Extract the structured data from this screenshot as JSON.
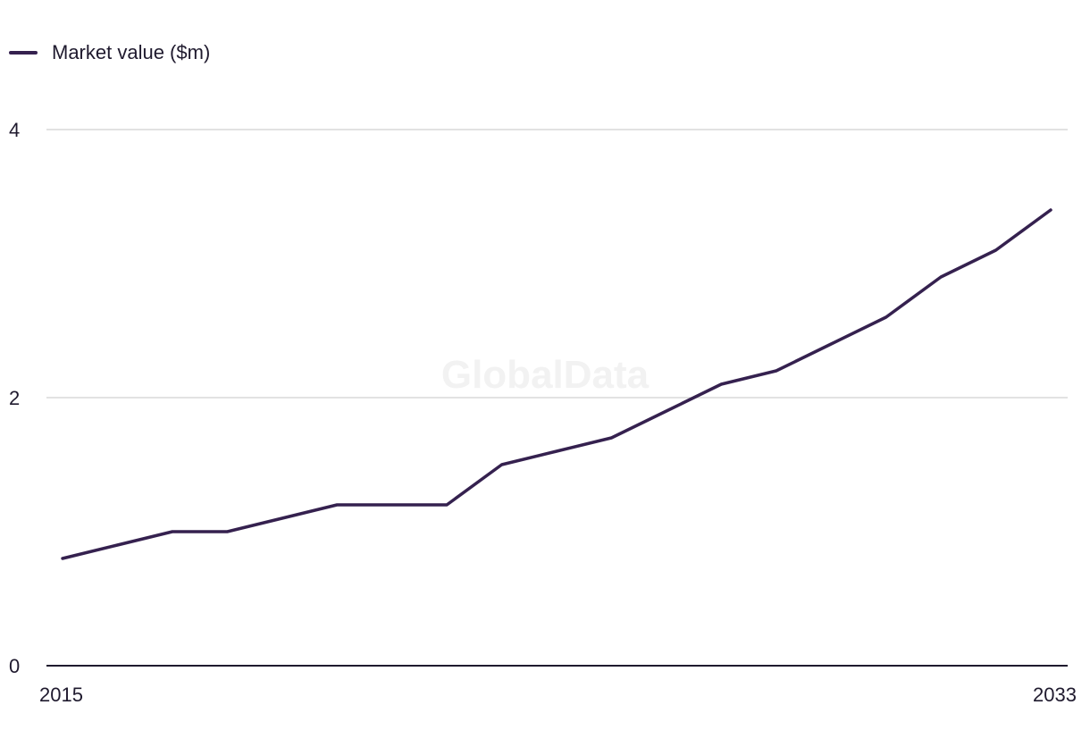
{
  "legend": {
    "label": "Market value ($m)"
  },
  "watermark": "GlobalData",
  "colors": {
    "series": "#35214f",
    "grid": "#d9d9d9",
    "axis": "#1f1a2e",
    "watermark": "#f2f2f2"
  },
  "chart_data": {
    "type": "line",
    "title": "",
    "xlabel": "",
    "ylabel": "",
    "x": [
      2015,
      2016,
      2017,
      2018,
      2019,
      2020,
      2021,
      2022,
      2023,
      2024,
      2025,
      2026,
      2027,
      2028,
      2029,
      2030,
      2031,
      2032,
      2033
    ],
    "series": [
      {
        "name": "Market value ($m)",
        "values": [
          0.8,
          0.9,
          1.0,
          1.0,
          1.1,
          1.2,
          1.2,
          1.2,
          1.5,
          1.6,
          1.7,
          1.9,
          2.1,
          2.2,
          2.4,
          2.6,
          2.9,
          3.1,
          3.4
        ]
      }
    ],
    "xlim": [
      2015,
      2033
    ],
    "ylim": [
      0,
      4
    ],
    "y_ticks": [
      0,
      2,
      4
    ],
    "x_tick_labels": [
      "2015",
      "2033"
    ],
    "grid": true,
    "legend_position": "top-left"
  }
}
